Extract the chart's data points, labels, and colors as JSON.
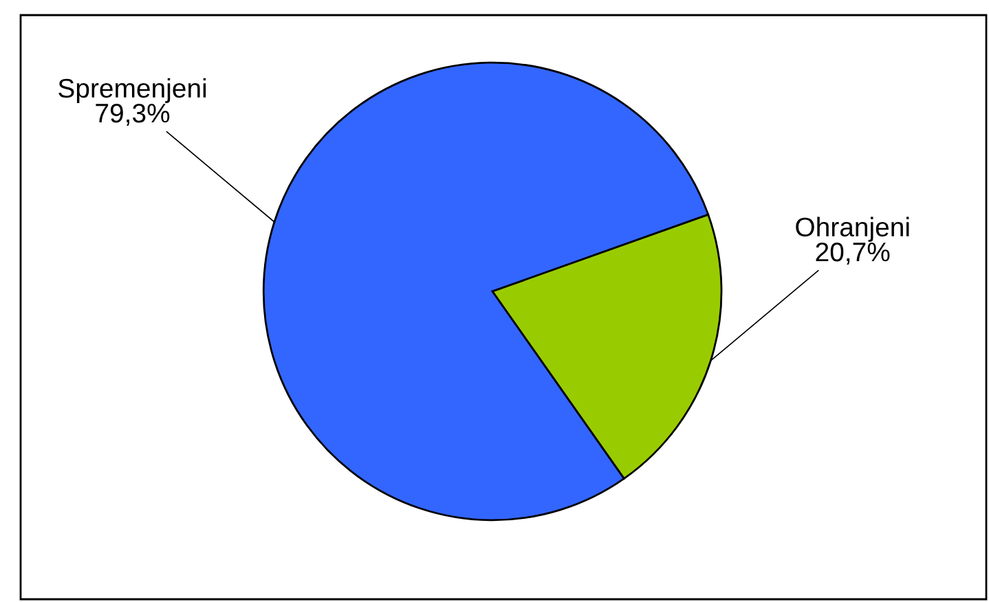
{
  "chart_data": {
    "type": "pie",
    "categories": [
      "Spremenjeni",
      "Ohranjeni"
    ],
    "values": [
      79.3,
      20.7
    ],
    "value_labels": [
      "79,3%",
      "20,7%"
    ],
    "colors": [
      "#3366ff",
      "#99cc00"
    ]
  }
}
